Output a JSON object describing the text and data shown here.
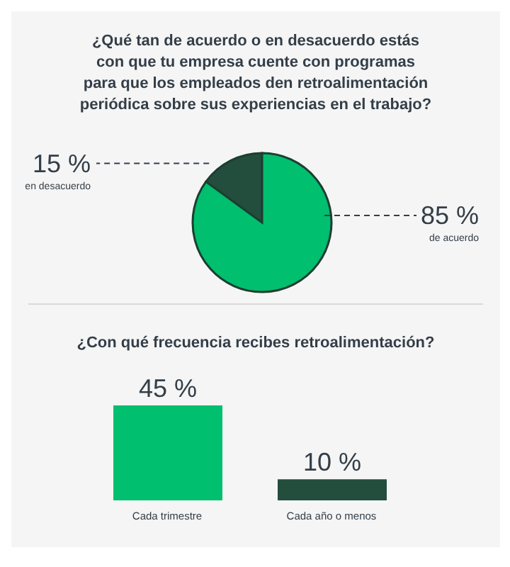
{
  "chart_data": [
    {
      "type": "pie",
      "title": "¿Qué tan de acuerdo o en desacuerdo estás con que tu empresa cuente con programas para que los empleados den retroalimentación periódica sobre sus experiencias en el trabajo?",
      "categories": [
        "en desacuerdo",
        "de acuerdo"
      ],
      "values": [
        15,
        85
      ],
      "colors": [
        "#234e3d",
        "#00bf6f"
      ],
      "value_labels": [
        "15 %",
        "85 %"
      ],
      "legend": false
    },
    {
      "type": "bar",
      "title": "¿Con qué frecuencia recibes retroalimentación?",
      "categories": [
        "Cada trimestre",
        "Cada año o menos"
      ],
      "values": [
        45,
        10
      ],
      "colors": [
        "#00bf6f",
        "#234e3d"
      ],
      "value_labels": [
        "45 %",
        "10 %"
      ],
      "legend": false
    }
  ]
}
